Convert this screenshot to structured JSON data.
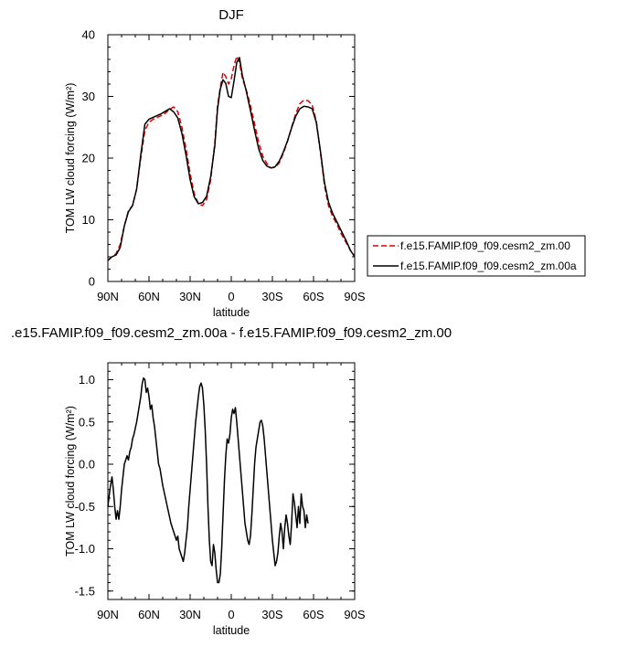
{
  "chart_data": [
    {
      "type": "line",
      "title": "DJF",
      "xlabel": "latitude",
      "ylabel": "TOM LW cloud forcing (W/m²)",
      "xlim": [
        90,
        -90
      ],
      "ylim": [
        0,
        40
      ],
      "xticks": [
        90,
        60,
        30,
        0,
        -30,
        -60,
        -90
      ],
      "xtick_labels": [
        "90N",
        "60N",
        "30N",
        "0",
        "30S",
        "60S",
        "90S"
      ],
      "yticks": [
        0,
        10,
        20,
        30,
        40
      ],
      "ytick_labels": [
        "0",
        "10",
        "20",
        "30",
        "40"
      ],
      "grid": false,
      "legend_position": "right, outside",
      "series": [
        {
          "name": "f.e15.FAMIP.f09_f09.cesm2_zm.00",
          "color": "#e00000",
          "dash": "dashed",
          "points": [
            [
              90,
              3.5
            ],
            [
              87,
              4.0
            ],
            [
              84,
              4.5
            ],
            [
              81,
              6.0
            ],
            [
              78,
              9.0
            ],
            [
              75,
              11.5
            ],
            [
              72,
              12.3
            ],
            [
              69,
              15.0
            ],
            [
              66,
              20.0
            ],
            [
              63,
              24.5
            ],
            [
              60,
              25.8
            ],
            [
              57,
              26.3
            ],
            [
              54,
              26.6
            ],
            [
              51,
              26.9
            ],
            [
              48,
              27.3
            ],
            [
              45,
              27.9
            ],
            [
              42,
              28.3
            ],
            [
              39,
              27.5
            ],
            [
              36,
              25.0
            ],
            [
              33,
              21.5
            ],
            [
              30,
              17.5
            ],
            [
              27,
              14.2
            ],
            [
              24,
              12.6
            ],
            [
              21,
              12.3
            ],
            [
              18,
              13.3
            ],
            [
              15,
              16.5
            ],
            [
              12,
              22.5
            ],
            [
              10,
              28.5
            ],
            [
              8,
              31.5
            ],
            [
              6,
              33.9
            ],
            [
              4,
              33.2
            ],
            [
              2,
              32.0
            ],
            [
              0,
              32.9
            ],
            [
              -2,
              35.0
            ],
            [
              -4,
              36.5
            ],
            [
              -6,
              35.5
            ],
            [
              -8,
              33.0
            ],
            [
              -11,
              31.0
            ],
            [
              -14,
              28.5
            ],
            [
              -17,
              25.5
            ],
            [
              -20,
              22.5
            ],
            [
              -23,
              20.3
            ],
            [
              -26,
              19.1
            ],
            [
              -29,
              18.4
            ],
            [
              -32,
              18.5
            ],
            [
              -35,
              19.2
            ],
            [
              -38,
              20.8
            ],
            [
              -41,
              22.7
            ],
            [
              -44,
              25.0
            ],
            [
              -47,
              27.2
            ],
            [
              -50,
              28.8
            ],
            [
              -53,
              29.4
            ],
            [
              -56,
              29.3
            ],
            [
              -59,
              28.6
            ],
            [
              -62,
              26.0
            ],
            [
              -65,
              21.0
            ],
            [
              -68,
              15.5
            ],
            [
              -71,
              12.2
            ],
            [
              -74,
              10.5
            ],
            [
              -77,
              9.3
            ],
            [
              -80,
              7.8
            ],
            [
              -84,
              6.2
            ],
            [
              -87,
              5.0
            ],
            [
              -90,
              4.2
            ]
          ]
        },
        {
          "name": "f.e15.FAMIP.f09_f09.cesm2_zm.00a",
          "color": "#000000",
          "dash": "solid",
          "points": [
            [
              90,
              3.4
            ],
            [
              87,
              4.0
            ],
            [
              84,
              4.3
            ],
            [
              81,
              5.5
            ],
            [
              78,
              9.0
            ],
            [
              75,
              11.3
            ],
            [
              72,
              12.3
            ],
            [
              69,
              15.0
            ],
            [
              66,
              20.5
            ],
            [
              63,
              25.5
            ],
            [
              60,
              26.3
            ],
            [
              57,
              26.6
            ],
            [
              54,
              26.9
            ],
            [
              51,
              27.2
            ],
            [
              48,
              27.6
            ],
            [
              45,
              28.0
            ],
            [
              42,
              27.5
            ],
            [
              39,
              26.5
            ],
            [
              36,
              24.0
            ],
            [
              33,
              20.5
            ],
            [
              30,
              16.5
            ],
            [
              27,
              13.7
            ],
            [
              24,
              12.6
            ],
            [
              21,
              12.8
            ],
            [
              18,
              13.8
            ],
            [
              15,
              17.0
            ],
            [
              12,
              22.0
            ],
            [
              10,
              28.0
            ],
            [
              8,
              31.2
            ],
            [
              6,
              32.7
            ],
            [
              4,
              32.1
            ],
            [
              2,
              30.0
            ],
            [
              0,
              29.8
            ],
            [
              -2,
              32.5
            ],
            [
              -4,
              35.5
            ],
            [
              -6,
              36.3
            ],
            [
              -8,
              33.5
            ],
            [
              -11,
              30.8
            ],
            [
              -14,
              27.7
            ],
            [
              -17,
              24.5
            ],
            [
              -20,
              21.5
            ],
            [
              -23,
              19.6
            ],
            [
              -26,
              18.7
            ],
            [
              -29,
              18.4
            ],
            [
              -32,
              18.6
            ],
            [
              -35,
              19.5
            ],
            [
              -38,
              21.0
            ],
            [
              -41,
              22.8
            ],
            [
              -44,
              24.9
            ],
            [
              -47,
              26.8
            ],
            [
              -50,
              28.0
            ],
            [
              -53,
              28.4
            ],
            [
              -56,
              28.3
            ],
            [
              -59,
              28.0
            ],
            [
              -62,
              25.8
            ],
            [
              -65,
              21.2
            ],
            [
              -68,
              16.0
            ],
            [
              -71,
              12.8
            ],
            [
              -74,
              11.0
            ],
            [
              -77,
              9.7
            ],
            [
              -80,
              8.3
            ],
            [
              -84,
              6.5
            ],
            [
              -87,
              5.0
            ],
            [
              -90,
              4.0
            ]
          ]
        }
      ]
    },
    {
      "type": "line",
      "title": ".e15.FAMIP.f09_f09.cesm2_zm.00a - f.e15.FAMIP.f09_f09.cesm2_zm.00",
      "xlabel": "latitude",
      "ylabel": "TOM LW cloud forcing (W/m²)",
      "xlim": [
        90,
        -90
      ],
      "ylim": [
        -1.6,
        1.2
      ],
      "xticks": [
        90,
        60,
        30,
        0,
        -30,
        -60,
        -90
      ],
      "xtick_labels": [
        "90N",
        "60N",
        "30N",
        "0",
        "30S",
        "60S",
        "90S"
      ],
      "yticks": [
        -1.5,
        -1.0,
        -0.5,
        0.0,
        0.5,
        1.0
      ],
      "ytick_labels": [
        "-1.5",
        "-1.0",
        "-0.5",
        "0.0",
        "0.5",
        "1.0"
      ],
      "grid": false,
      "series": [
        {
          "color": "#000000",
          "dash": "solid",
          "points": [
            [
              90,
              -0.5
            ],
            [
              88.5,
              -0.3
            ],
            [
              87,
              -0.15
            ],
            [
              86,
              -0.3
            ],
            [
              85,
              -0.5
            ],
            [
              84,
              -0.65
            ],
            [
              83,
              -0.55
            ],
            [
              82,
              -0.65
            ],
            [
              81,
              -0.5
            ],
            [
              80,
              -0.3
            ],
            [
              79,
              -0.15
            ],
            [
              78,
              0.0
            ],
            [
              77,
              0.05
            ],
            [
              76,
              0.1
            ],
            [
              75,
              0.05
            ],
            [
              74,
              0.15
            ],
            [
              73,
              0.2
            ],
            [
              72,
              0.3
            ],
            [
              71,
              0.35
            ],
            [
              69,
              0.5
            ],
            [
              68,
              0.6
            ],
            [
              67,
              0.7
            ],
            [
              66,
              0.8
            ],
            [
              65,
              0.95
            ],
            [
              64,
              1.02
            ],
            [
              63,
              1.0
            ],
            [
              62,
              0.85
            ],
            [
              61,
              0.9
            ],
            [
              60,
              0.8
            ],
            [
              59,
              0.65
            ],
            [
              58,
              0.7
            ],
            [
              57,
              0.55
            ],
            [
              56,
              0.45
            ],
            [
              55,
              0.3
            ],
            [
              54,
              0.15
            ],
            [
              53,
              0.0
            ],
            [
              52,
              -0.05
            ],
            [
              51,
              -0.15
            ],
            [
              50,
              -0.25
            ],
            [
              48,
              -0.4
            ],
            [
              46,
              -0.55
            ],
            [
              44,
              -0.7
            ],
            [
              42,
              -0.8
            ],
            [
              40,
              -0.9
            ],
            [
              39,
              -0.85
            ],
            [
              38,
              -1.0
            ],
            [
              36,
              -1.1
            ],
            [
              35,
              -1.15
            ],
            [
              34,
              -1.05
            ],
            [
              33,
              -0.9
            ],
            [
              32,
              -0.75
            ],
            [
              31,
              -0.5
            ],
            [
              30,
              -0.3
            ],
            [
              29,
              -0.1
            ],
            [
              28,
              0.1
            ],
            [
              27,
              0.3
            ],
            [
              26,
              0.5
            ],
            [
              25,
              0.65
            ],
            [
              24,
              0.8
            ],
            [
              23,
              0.92
            ],
            [
              22,
              0.96
            ],
            [
              21,
              0.9
            ],
            [
              20,
              0.7
            ],
            [
              19,
              0.4
            ],
            [
              18,
              0.0
            ],
            [
              17,
              -0.5
            ],
            [
              16,
              -0.9
            ],
            [
              15,
              -1.15
            ],
            [
              14,
              -1.2
            ],
            [
              13,
              -0.95
            ],
            [
              12,
              -1.05
            ],
            [
              11,
              -1.25
            ],
            [
              10,
              -1.4
            ],
            [
              9,
              -1.4
            ],
            [
              8,
              -1.3
            ],
            [
              7,
              -1.0
            ],
            [
              6,
              -0.6
            ],
            [
              5,
              -0.2
            ],
            [
              4,
              0.1
            ],
            [
              3,
              0.3
            ],
            [
              2,
              0.25
            ],
            [
              1,
              0.35
            ],
            [
              0,
              0.55
            ],
            [
              -1,
              0.65
            ],
            [
              -2,
              0.6
            ],
            [
              -3,
              0.67
            ],
            [
              -4,
              0.5
            ],
            [
              -5,
              0.3
            ],
            [
              -6,
              0.1
            ],
            [
              -7,
              -0.1
            ],
            [
              -8,
              -0.3
            ],
            [
              -9,
              -0.5
            ],
            [
              -10,
              -0.7
            ],
            [
              -11,
              -0.8
            ],
            [
              -12,
              -0.9
            ],
            [
              -13,
              -0.95
            ],
            [
              -14,
              -0.85
            ],
            [
              -15,
              -0.6
            ],
            [
              -16,
              -0.3
            ],
            [
              -17,
              0.0
            ],
            [
              -18,
              0.2
            ],
            [
              -19,
              0.3
            ],
            [
              -20,
              0.4
            ],
            [
              -21,
              0.5
            ],
            [
              -22,
              0.52
            ],
            [
              -23,
              0.45
            ],
            [
              -24,
              0.3
            ],
            [
              -25,
              0.1
            ],
            [
              -26,
              -0.1
            ],
            [
              -27,
              -0.3
            ],
            [
              -28,
              -0.5
            ],
            [
              -29,
              -0.7
            ],
            [
              -30,
              -0.9
            ],
            [
              -31,
              -1.05
            ],
            [
              -32,
              -1.2
            ],
            [
              -33,
              -1.15
            ],
            [
              -34,
              -1.05
            ],
            [
              -35,
              -0.85
            ],
            [
              -36,
              -0.7
            ],
            [
              -37,
              -0.8
            ],
            [
              -38,
              -1.0
            ],
            [
              -39,
              -0.75
            ],
            [
              -40,
              -0.6
            ],
            [
              -41,
              -0.7
            ],
            [
              -42,
              -0.85
            ],
            [
              -43,
              -0.95
            ],
            [
              -44,
              -0.7
            ],
            [
              -45,
              -0.35
            ],
            [
              -46,
              -0.45
            ],
            [
              -47,
              -0.6
            ],
            [
              -48,
              -0.75
            ],
            [
              -49,
              -0.5
            ],
            [
              -50,
              -0.7
            ],
            [
              -51,
              -0.35
            ],
            [
              -52,
              -0.5
            ],
            [
              -53,
              -0.55
            ],
            [
              -54,
              -0.75
            ],
            [
              -55,
              -0.6
            ],
            [
              -56,
              -0.7
            ]
          ]
        }
      ]
    }
  ]
}
